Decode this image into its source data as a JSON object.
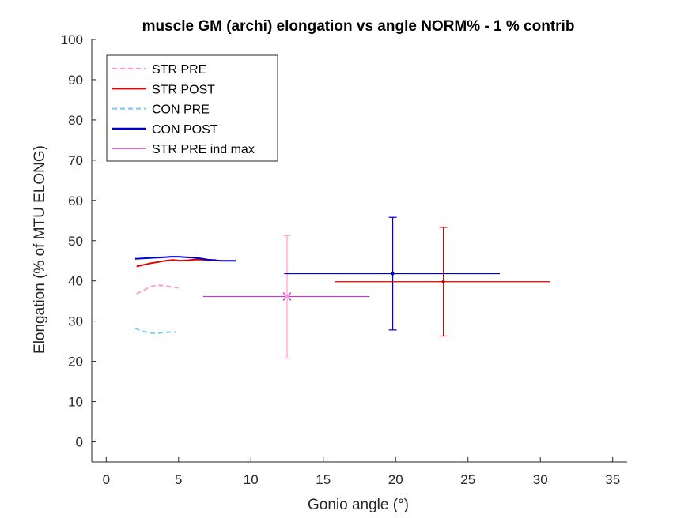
{
  "chart_data": {
    "type": "line",
    "title": "muscle GM (archi) elongation vs angle NORM% - 1 % contrib",
    "xlabel": "Gonio angle (°)",
    "ylabel": "Elongation (% of MTU ELONG)",
    "xlim": [
      -1,
      36
    ],
    "ylim": [
      -5,
      100
    ],
    "xticks": [
      0,
      5,
      10,
      15,
      20,
      25,
      30,
      35
    ],
    "yticks": [
      0,
      10,
      20,
      30,
      40,
      50,
      60,
      70,
      80,
      90,
      100
    ],
    "legend_position": "top-left",
    "series": [
      {
        "name": "STR PRE",
        "color": "#ff99cc",
        "style": "dashed",
        "x": [
          2.1,
          2.5,
          3.0,
          3.5,
          4.0,
          4.5,
          5.0
        ],
        "y": [
          36.8,
          37.5,
          38.5,
          38.9,
          38.8,
          38.5,
          38.3
        ]
      },
      {
        "name": "STR POST",
        "color": "#e00000",
        "style": "solid",
        "x": [
          2.1,
          2.6,
          3.1,
          3.6,
          4.1,
          4.6,
          5.1,
          5.6,
          6.1,
          6.6,
          7.1,
          7.6
        ],
        "y": [
          43.6,
          44.0,
          44.4,
          44.7,
          45.0,
          45.2,
          45.0,
          45.1,
          45.3,
          45.3,
          45.2,
          45.2
        ]
      },
      {
        "name": "CON PRE",
        "color": "#80ccff",
        "style": "dashed",
        "x": [
          2.0,
          2.5,
          3.0,
          3.5,
          4.0,
          4.5,
          4.8
        ],
        "y": [
          28.2,
          27.5,
          27.1,
          27.0,
          27.2,
          27.3,
          27.3
        ]
      },
      {
        "name": "CON POST",
        "color": "#0000cc",
        "style": "solid",
        "x": [
          2.0,
          2.5,
          3.0,
          3.5,
          4.0,
          4.5,
          5.0,
          5.5,
          6.0,
          6.5,
          7.0,
          7.5,
          8.0,
          8.5,
          9.0
        ],
        "y": [
          45.5,
          45.6,
          45.7,
          45.8,
          45.9,
          46.0,
          46.0,
          45.9,
          45.8,
          45.6,
          45.3,
          45.1,
          45.0,
          45.0,
          45.0
        ]
      },
      {
        "name": "STR PRE ind max",
        "color": "#cc33cc",
        "style": "solid",
        "marker": "x",
        "x": [
          12.5
        ],
        "y": [
          36.1
        ],
        "xerr_range": [
          6.7,
          18.2
        ]
      }
    ],
    "error_points": [
      {
        "x": 12.5,
        "y": 36.1,
        "ylow": 20.8,
        "yhigh": 51.3,
        "color": "#ff99cc"
      },
      {
        "x": 19.8,
        "y": 41.8,
        "xlow": 12.3,
        "xhigh": 27.2,
        "ylow": 27.8,
        "yhigh": 55.8,
        "color": "#0000cc"
      },
      {
        "x": 23.3,
        "y": 39.8,
        "xlow": 15.8,
        "xhigh": 30.7,
        "ylow": 26.3,
        "yhigh": 53.3,
        "color": "#cc0000"
      }
    ]
  }
}
